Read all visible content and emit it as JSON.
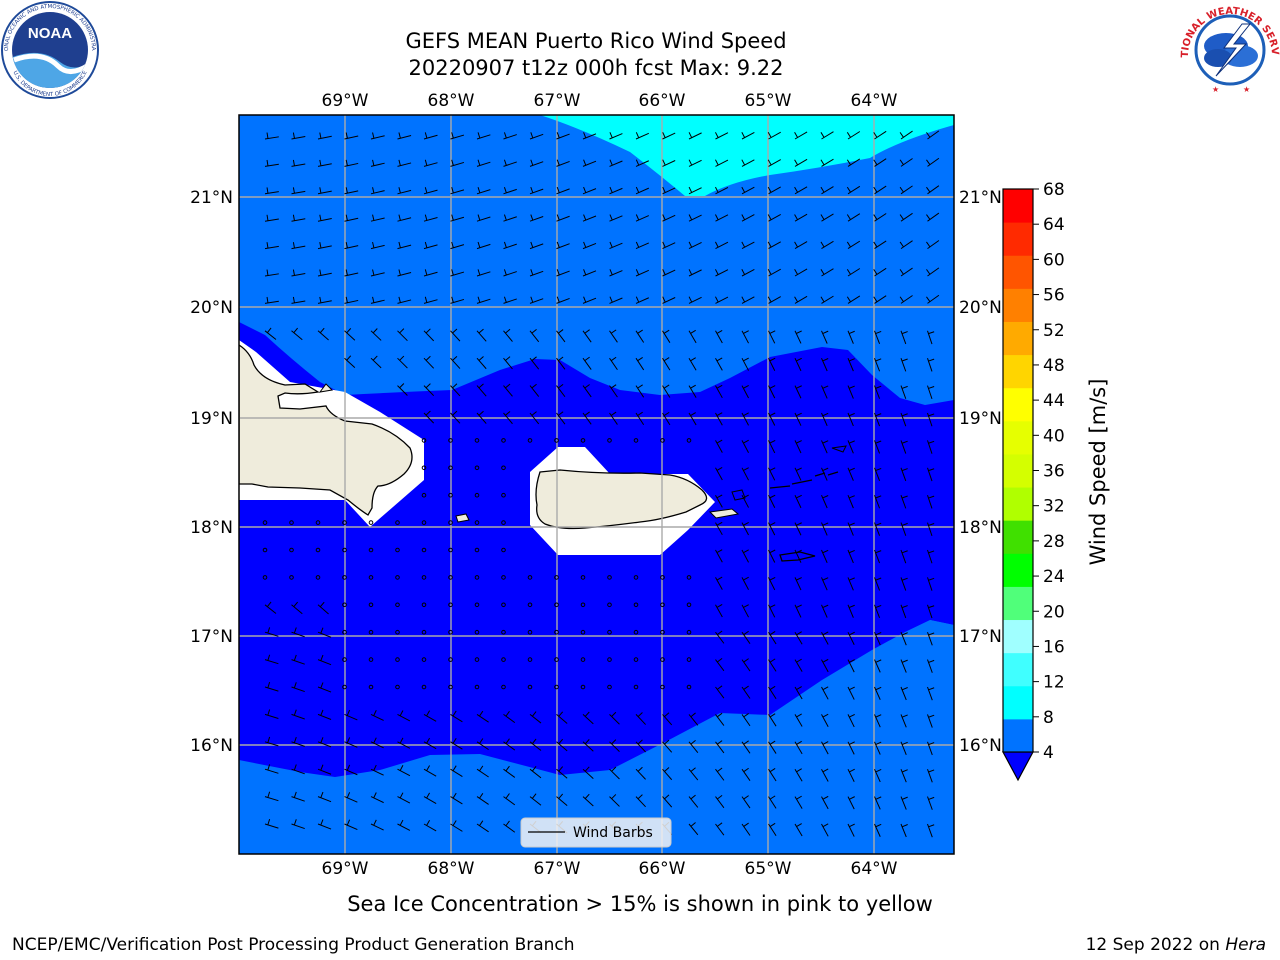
{
  "header": {
    "title_line1": "GEFS MEAN Puerto Rico Wind Speed",
    "title_line2": "20220907 t12z 000h fcst   Max: 9.22"
  },
  "logos": {
    "noaa": {
      "text": "NOAA",
      "ring_text": "NATIONAL OCEANIC AND ATMOSPHERIC ADMINISTRATION",
      "bottom_text": "U.S. DEPARTMENT OF COMMERCE",
      "icon": "noaa-logo"
    },
    "nws": {
      "ring_text": "NATIONAL WEATHER SERVICE",
      "icon": "nws-logo"
    }
  },
  "map": {
    "lon_labels": [
      "69°W",
      "68°W",
      "67°W",
      "66°W",
      "65°W",
      "64°W"
    ],
    "lat_labels": [
      "21°N",
      "20°N",
      "19°N",
      "18°N",
      "17°N",
      "16°N"
    ],
    "gridlines": true,
    "legend": {
      "label": "Wind Barbs",
      "placement": "bottom-center"
    },
    "colors": {
      "band_4_8": "#0073ff",
      "band_0_4": "#0000ff",
      "band_8_12": "#00ffff",
      "land": "#efecdc",
      "mask": "#ffffff"
    }
  },
  "colorbar": {
    "label": "Wind Speed [m/s]",
    "ticks": [
      "68",
      "64",
      "60",
      "56",
      "52",
      "48",
      "44",
      "40",
      "36",
      "32",
      "28",
      "24",
      "20",
      "16",
      "12",
      "8",
      "4"
    ],
    "colors": [
      "#0000ff",
      "#0073ff",
      "#00ffff",
      "#40ffff",
      "#a0ffff",
      "#50ff7a",
      "#00ff00",
      "#40e000",
      "#b0ff00",
      "#d4ff00",
      "#e6ff00",
      "#ffff00",
      "#ffd500",
      "#ffaa00",
      "#ff8000",
      "#ff5500",
      "#ff2a00",
      "#ff0000"
    ],
    "extend": "min"
  },
  "notes": {
    "sea_ice": "Sea Ice Concentration > 15% is shown in pink to yellow"
  },
  "footer": {
    "left": "NCEP/EMC/Verification Post Processing Product Generation Branch",
    "right_date": "12 Sep 2022 on ",
    "right_host": "Hera"
  }
}
